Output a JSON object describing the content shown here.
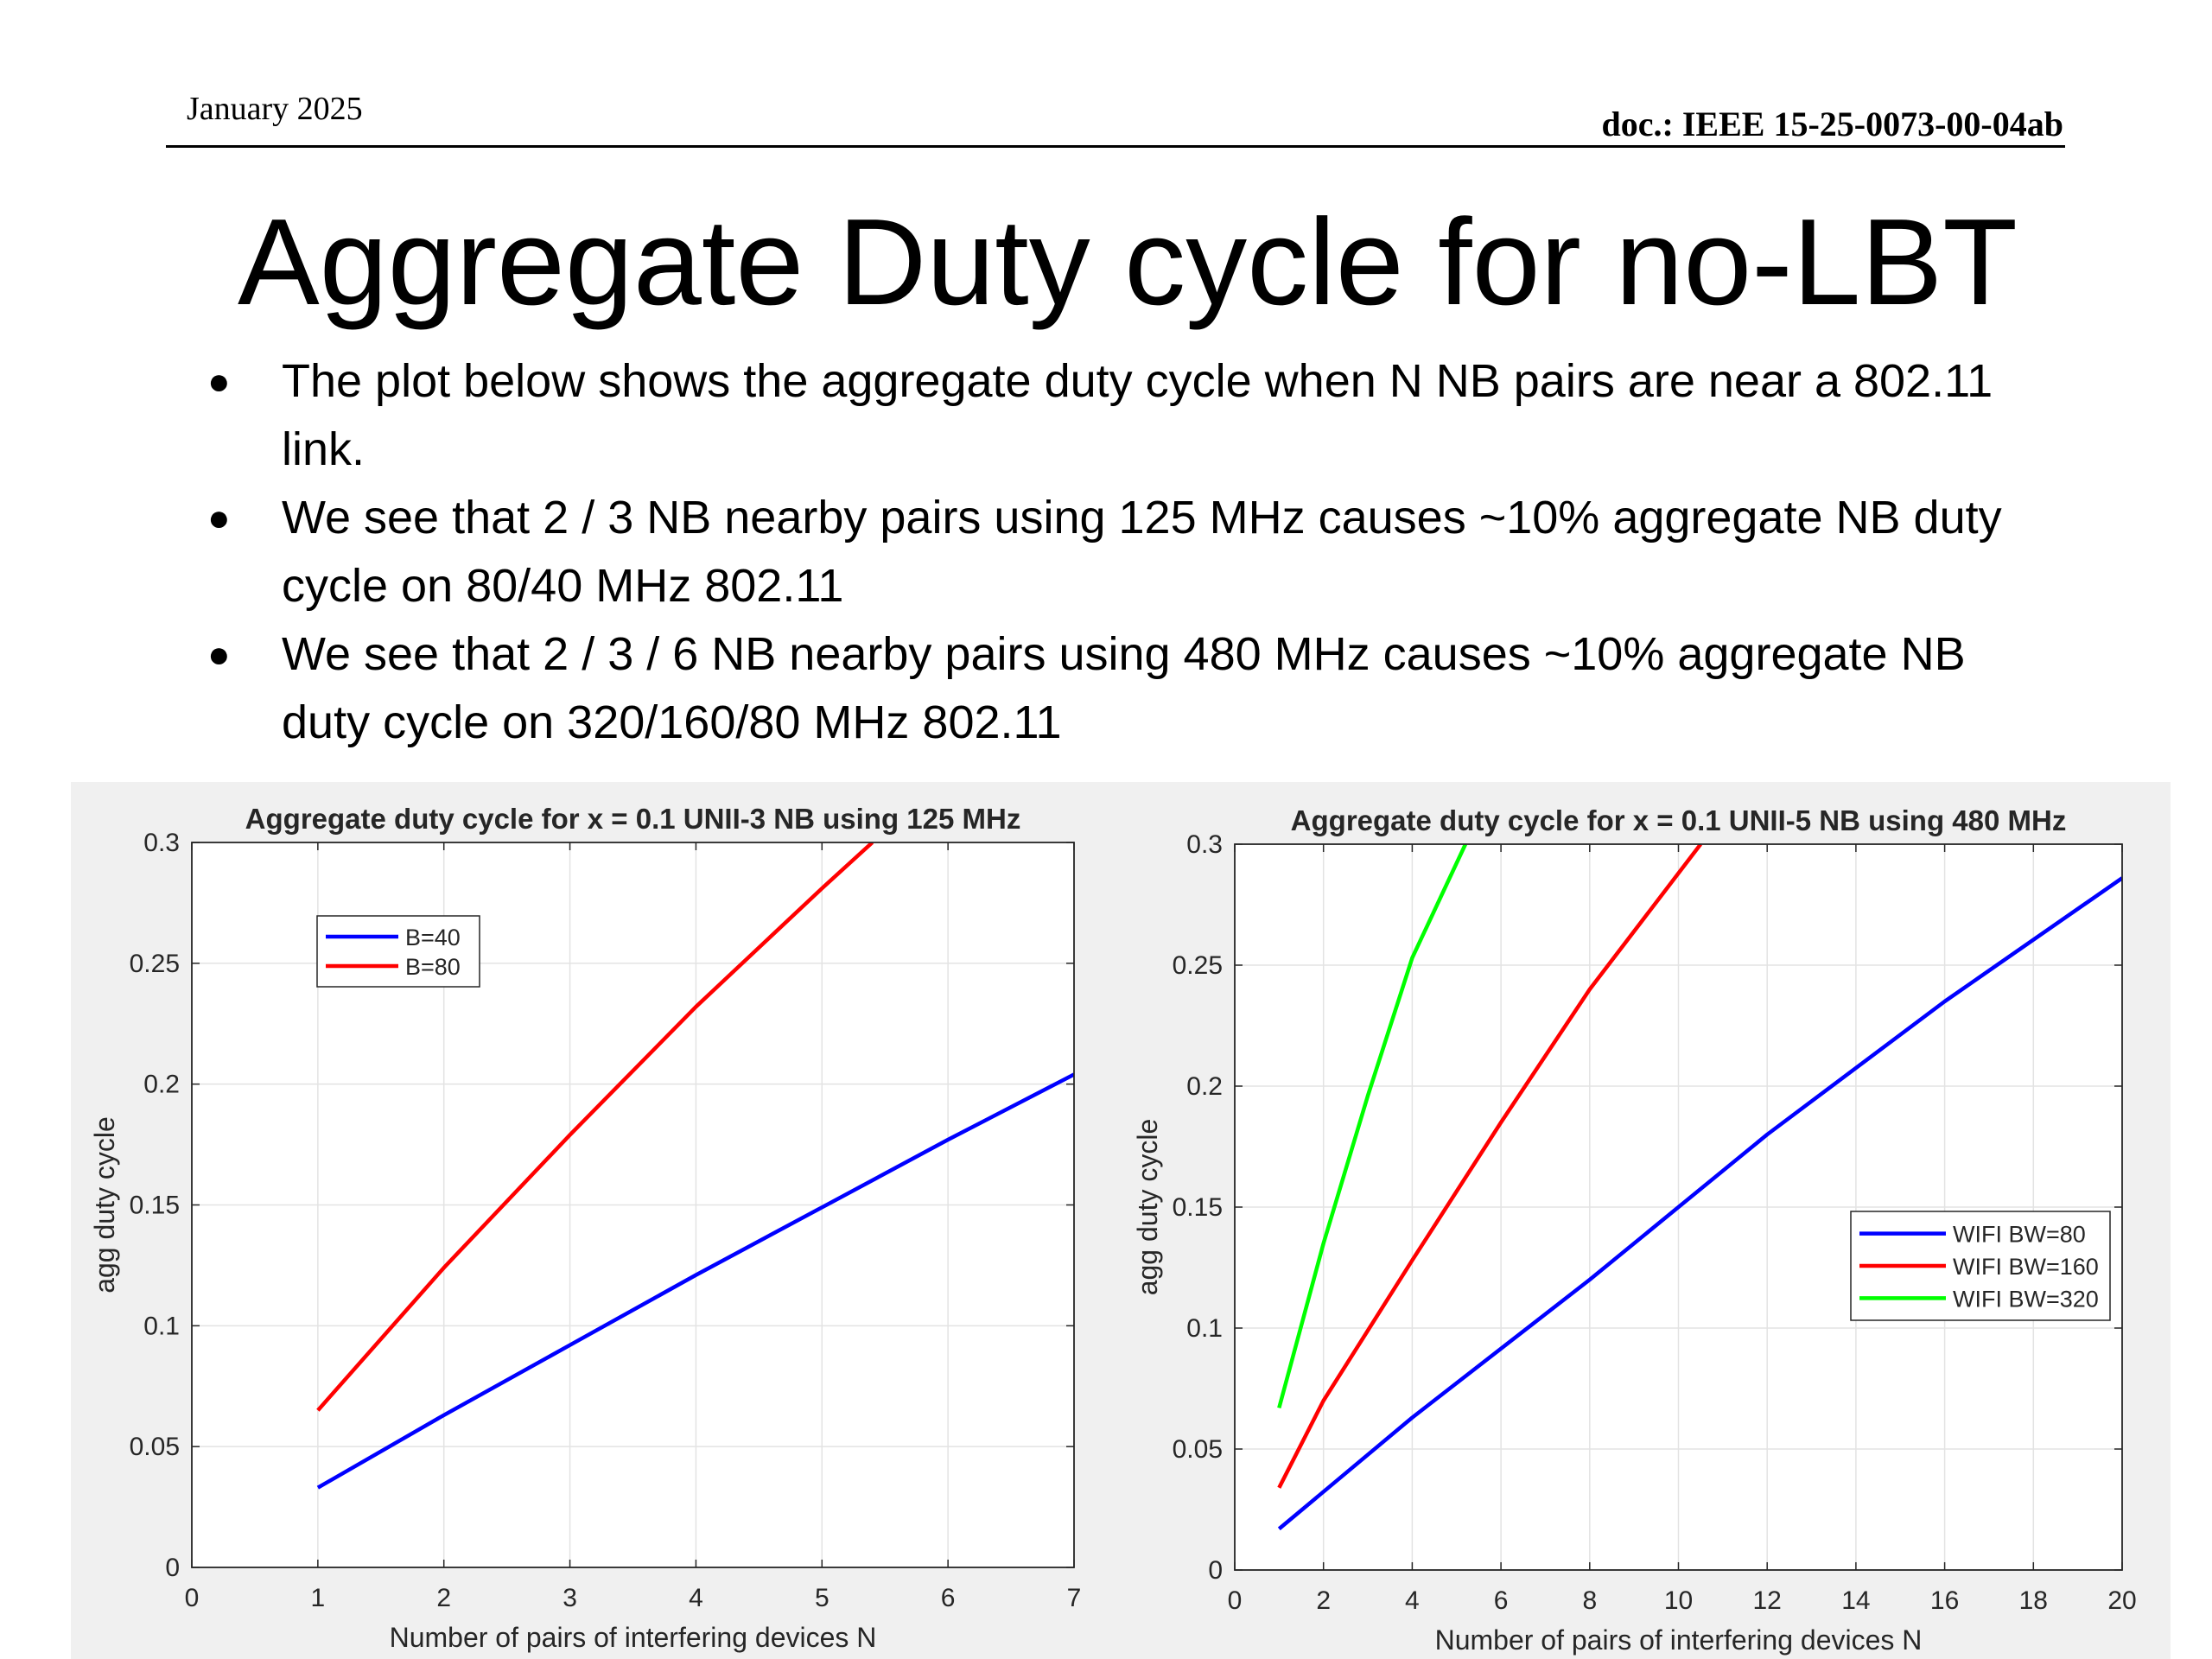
{
  "header": {
    "date": "January 2025",
    "doc": "doc.: IEEE 15-25-0073-00-04ab"
  },
  "slide": {
    "title": "Aggregate Duty cycle for no-LBT",
    "bullets": [
      "The plot below shows the aggregate duty cycle when N NB pairs are near a 802.11 link.",
      "We see that 2 / 3 NB nearby pairs using 125 MHz causes ~10% aggregate NB duty cycle on 80/40 MHz 802.11",
      "We see that 2 / 3 / 6 NB nearby pairs using 480 MHz causes ~10% aggregate NB duty cycle on 320/160/80 MHz 802.11"
    ]
  },
  "chart_data": [
    {
      "type": "line",
      "title": "Aggregate duty cycle for x = 0.1 UNII-3 NB using 125 MHz",
      "xlabel": "Number of pairs of interfering devices N",
      "ylabel": "agg duty cycle",
      "xlim": [
        0,
        7
      ],
      "ylim": [
        0,
        0.3
      ],
      "xticks": [
        "0",
        "1",
        "2",
        "3",
        "4",
        "5",
        "6",
        "7"
      ],
      "yticks": [
        "0",
        "0.05",
        "0.1",
        "0.15",
        "0.2",
        "0.25",
        "0.3"
      ],
      "grid": true,
      "legend_position": "top-left",
      "series": [
        {
          "name": "B=40",
          "color": "#0000ff",
          "x": [
            1,
            2,
            3,
            4,
            5,
            6,
            7
          ],
          "y": [
            0.033,
            0.063,
            0.092,
            0.121,
            0.149,
            0.177,
            0.204
          ]
        },
        {
          "name": "B=80",
          "color": "#ff0000",
          "x": [
            1,
            2,
            3,
            4,
            5,
            5.4
          ],
          "y": [
            0.065,
            0.124,
            0.179,
            0.232,
            0.281,
            0.3
          ]
        }
      ]
    },
    {
      "type": "line",
      "title": "Aggregate duty cycle for x = 0.1 UNII-5 NB using 480 MHz",
      "xlabel": "Number of pairs of interfering devices N",
      "ylabel": "agg duty cycle",
      "xlim": [
        0,
        20
      ],
      "ylim": [
        0,
        0.3
      ],
      "xticks": [
        "0",
        "2",
        "4",
        "6",
        "8",
        "10",
        "12",
        "14",
        "16",
        "18",
        "20"
      ],
      "yticks": [
        "0",
        "0.05",
        "0.1",
        "0.15",
        "0.2",
        "0.25",
        "0.3"
      ],
      "grid": true,
      "legend_position": "right",
      "series": [
        {
          "name": "WIFI BW=80",
          "color": "#0000ff",
          "x": [
            1,
            4,
            8,
            12,
            16,
            20
          ],
          "y": [
            0.017,
            0.063,
            0.12,
            0.18,
            0.235,
            0.286
          ]
        },
        {
          "name": "WIFI BW=160",
          "color": "#ff0000",
          "x": [
            1,
            2,
            4,
            6,
            8,
            10.5
          ],
          "y": [
            0.034,
            0.07,
            0.128,
            0.185,
            0.24,
            0.3
          ]
        },
        {
          "name": "WIFI BW=320",
          "color": "#00ff00",
          "x": [
            1,
            2,
            3,
            4,
            5.2
          ],
          "y": [
            0.067,
            0.135,
            0.196,
            0.253,
            0.3
          ]
        }
      ]
    }
  ]
}
